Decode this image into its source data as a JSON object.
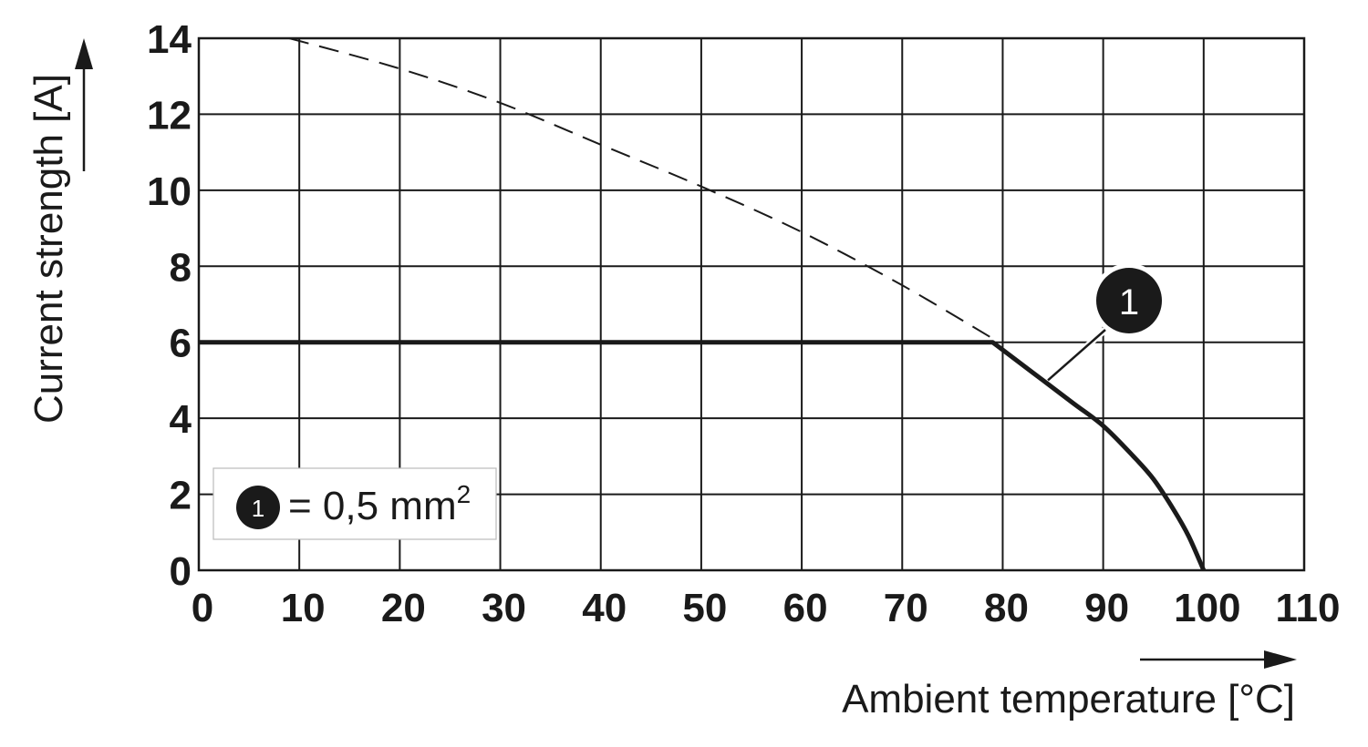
{
  "chart_data": {
    "type": "line",
    "xlabel": "Ambient temperature [°C]",
    "ylabel": "Current strength [A]",
    "xlim": [
      0,
      110
    ],
    "ylim": [
      0,
      14
    ],
    "x_ticks": [
      "0",
      "10",
      "20",
      "30",
      "40",
      "50",
      "60",
      "70",
      "80",
      "90",
      "100",
      "110"
    ],
    "y_ticks": [
      "0",
      "2",
      "4",
      "6",
      "8",
      "10",
      "12",
      "14"
    ],
    "grid": true,
    "series": [
      {
        "style": "solid",
        "marker_label": "1",
        "x": [
          0,
          79,
          83,
          87,
          90,
          93,
          95,
          97,
          98.5,
          100
        ],
        "y": [
          6,
          6,
          5.2,
          4.4,
          3.8,
          3.0,
          2.4,
          1.6,
          0.9,
          0
        ]
      },
      {
        "style": "dashed",
        "x": [
          9,
          20,
          30,
          40,
          50,
          60,
          70,
          79
        ],
        "y": [
          14,
          13.2,
          12.3,
          11.2,
          10.1,
          8.9,
          7.5,
          6.1
        ]
      }
    ],
    "callout": {
      "label": "1",
      "target_x": 84.5,
      "target_y": 5.0
    },
    "legend": {
      "placement": "bottom-left",
      "badge": "1",
      "text": "= 0,5 mm",
      "superscript": "2"
    }
  },
  "colors": {
    "ink": "#1a1a1a",
    "grid": "#1a1a1a",
    "background": "#ffffff"
  }
}
